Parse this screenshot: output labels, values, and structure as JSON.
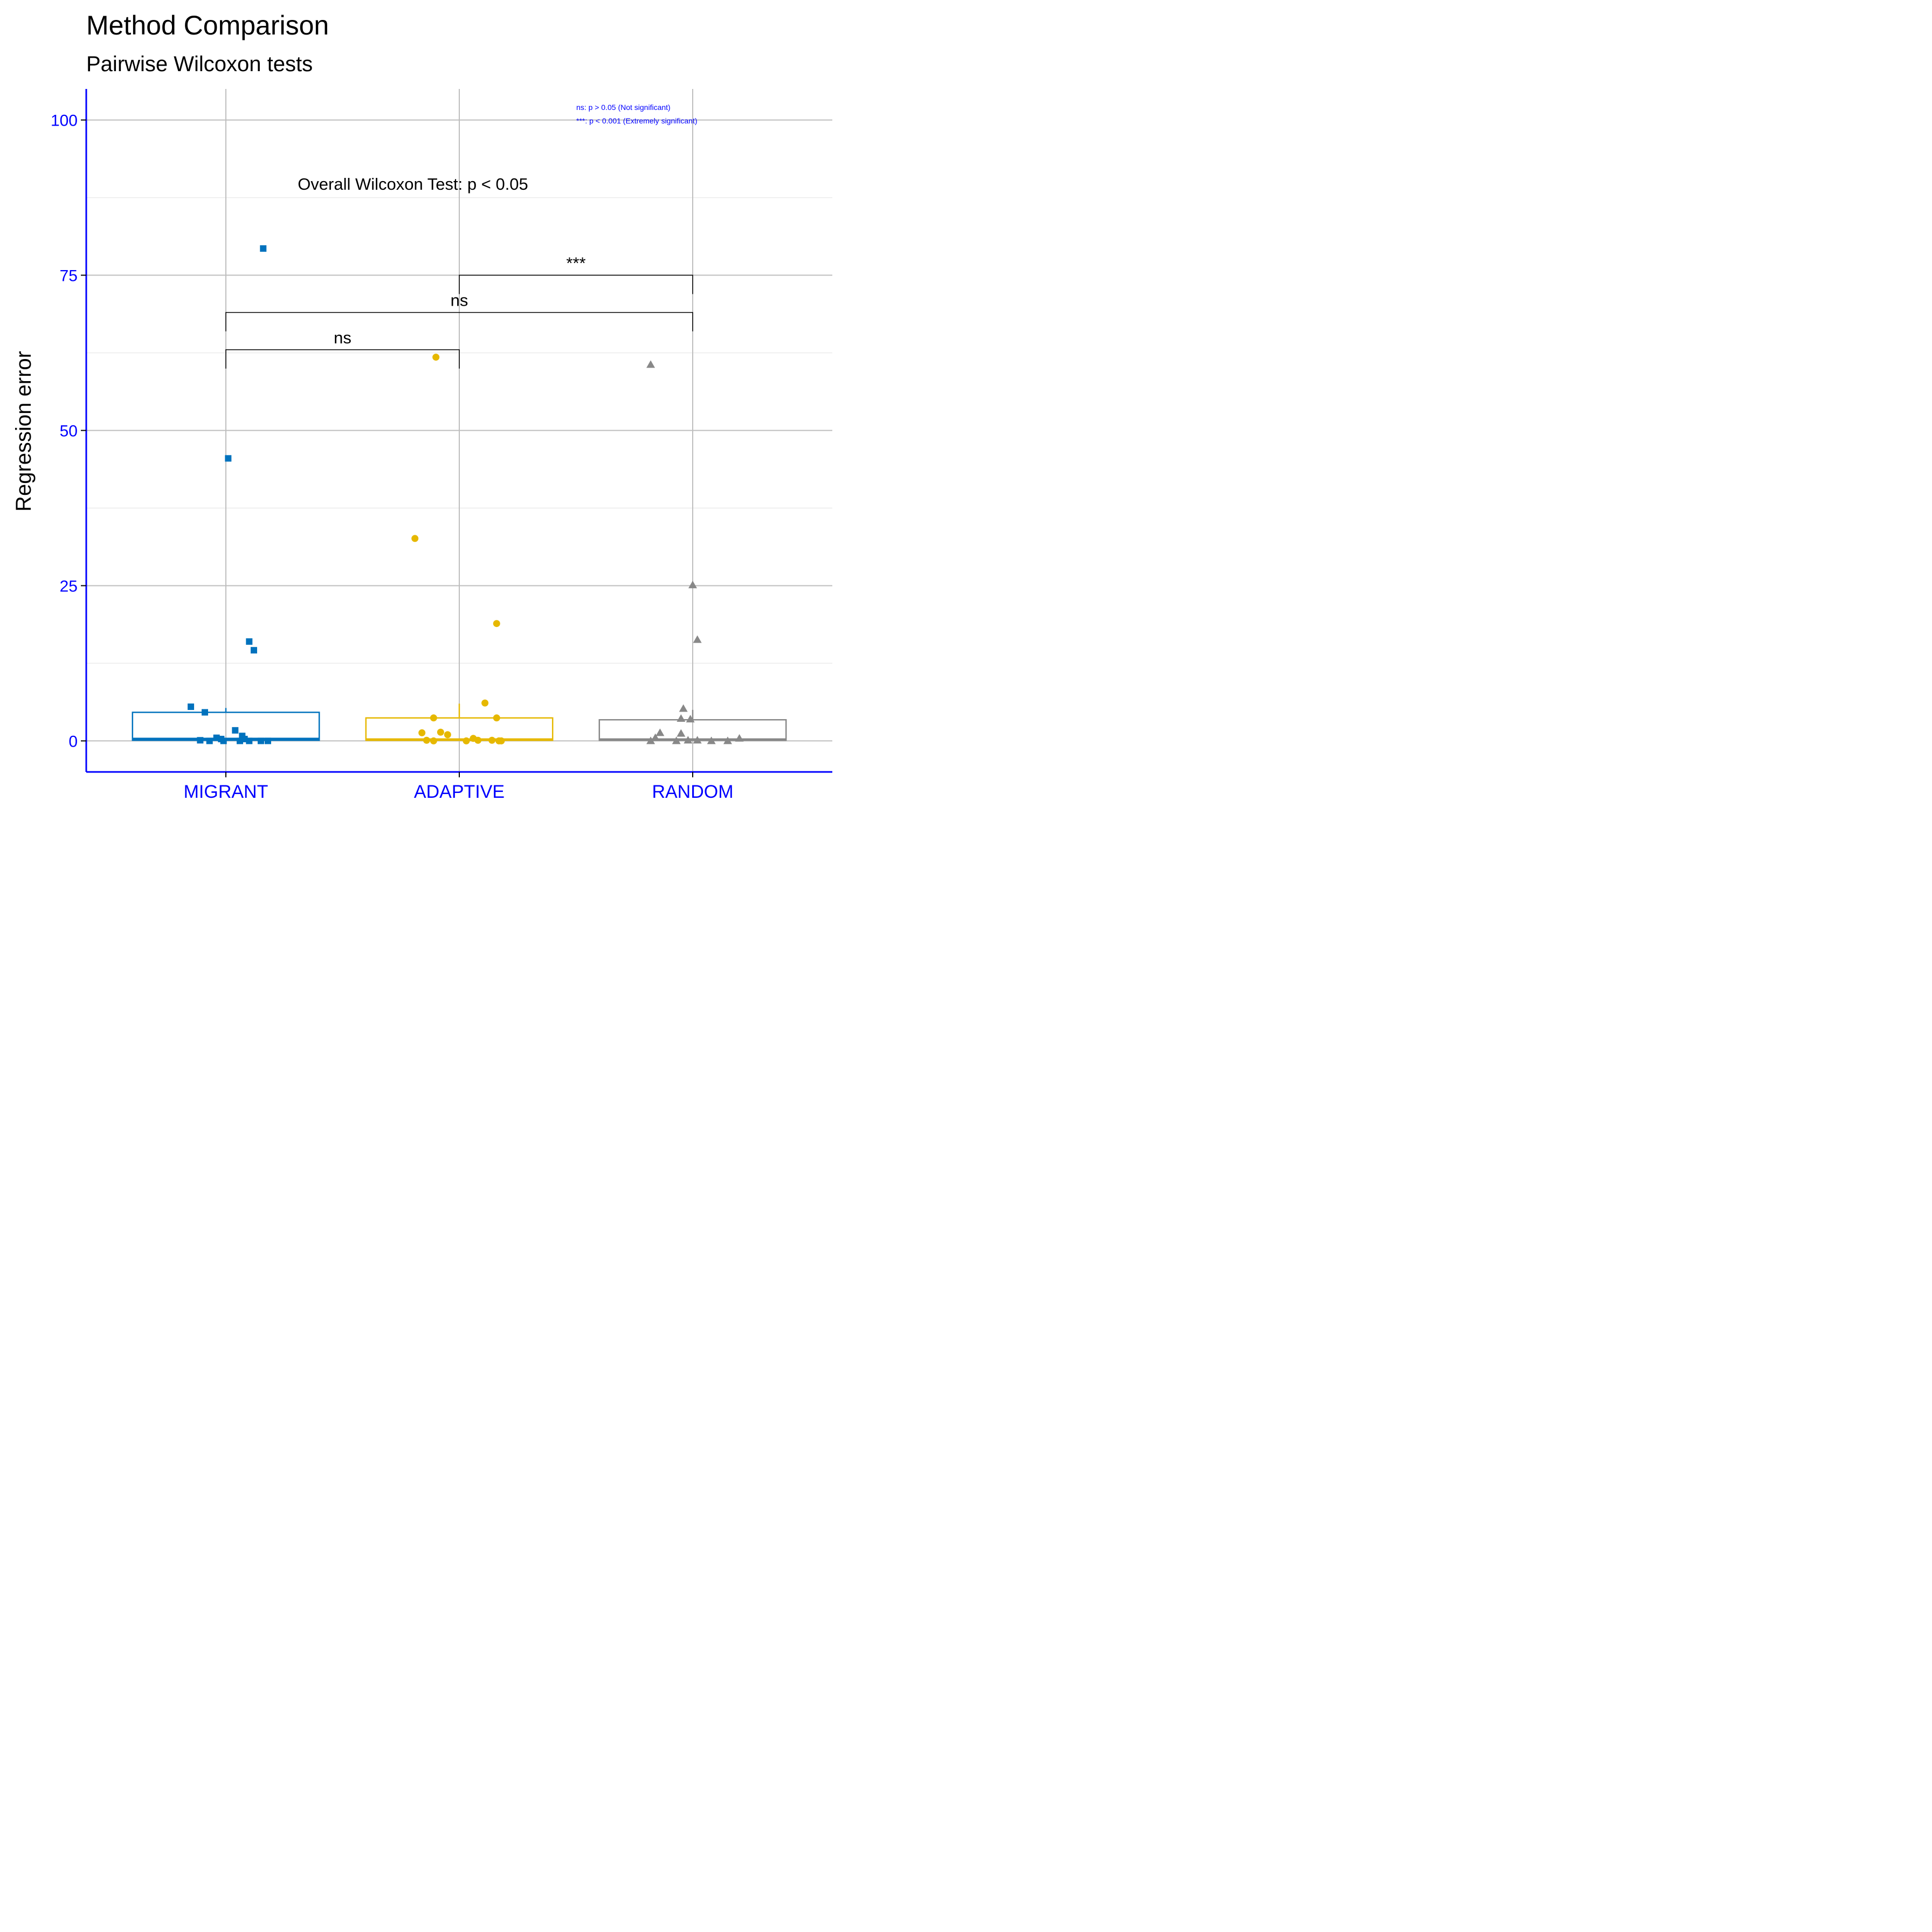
{
  "chart_data": {
    "type": "scatter",
    "title": "Method Comparison",
    "subtitle": "Pairwise Wilcoxon tests",
    "xlabel": "",
    "ylabel": "Regression error",
    "ylim": [
      -5,
      105
    ],
    "yticks": [
      0,
      25,
      50,
      75,
      100
    ],
    "categories": [
      "MIGRANT",
      "ADAPTIVE",
      "RANDOM"
    ],
    "grid": true,
    "annotation": "Overall Wilcoxon Test: p < 0.05",
    "legend_notes": [
      "ns: p > 0.05 (Not significant)",
      "***: p < 0.001 (Extremely significant)"
    ],
    "comparisons": [
      {
        "from": "MIGRANT",
        "to": "ADAPTIVE",
        "y": 63,
        "label": "ns"
      },
      {
        "from": "MIGRANT",
        "to": "RANDOM",
        "y": 69,
        "label": "ns"
      },
      {
        "from": "ADAPTIVE",
        "to": "RANDOM",
        "y": 75,
        "label": "***"
      }
    ],
    "series": [
      {
        "category": "MIGRANT",
        "color": "#0072bd",
        "shape": "square",
        "box": {
          "min": 0,
          "q1": 0.1,
          "median": 0.3,
          "q3": 4.6,
          "max": 5.3
        },
        "points": [
          {
            "dx": 0.16,
            "y": 79.3
          },
          {
            "dx": 0.01,
            "y": 45.5
          },
          {
            "dx": 0.1,
            "y": 16.0
          },
          {
            "dx": 0.12,
            "y": 14.6
          },
          {
            "dx": -0.15,
            "y": 5.5
          },
          {
            "dx": -0.09,
            "y": 4.6
          },
          {
            "dx": 0.04,
            "y": 1.7
          },
          {
            "dx": 0.07,
            "y": 0.8
          },
          {
            "dx": -0.04,
            "y": 0.5
          },
          {
            "dx": -0.02,
            "y": 0.3
          },
          {
            "dx": 0.08,
            "y": 0.3
          },
          {
            "dx": -0.11,
            "y": 0.1
          },
          {
            "dx": -0.07,
            "y": 0.0
          },
          {
            "dx": -0.01,
            "y": 0.0
          },
          {
            "dx": 0.06,
            "y": 0.0
          },
          {
            "dx": 0.1,
            "y": 0.0
          },
          {
            "dx": 0.15,
            "y": 0.0
          },
          {
            "dx": 0.18,
            "y": 0.0
          }
        ]
      },
      {
        "category": "ADAPTIVE",
        "color": "#e6b800",
        "shape": "circle",
        "box": {
          "min": 0,
          "q1": 0.1,
          "median": 0.2,
          "q3": 3.7,
          "max": 6.0
        },
        "points": [
          {
            "dx": -0.1,
            "y": 61.8
          },
          {
            "dx": -0.19,
            "y": 32.6
          },
          {
            "dx": 0.16,
            "y": 18.9
          },
          {
            "dx": 0.11,
            "y": 6.1
          },
          {
            "dx": -0.11,
            "y": 3.7
          },
          {
            "dx": 0.16,
            "y": 3.7
          },
          {
            "dx": -0.16,
            "y": 1.3
          },
          {
            "dx": -0.08,
            "y": 1.4
          },
          {
            "dx": -0.05,
            "y": 1.0
          },
          {
            "dx": 0.06,
            "y": 0.4
          },
          {
            "dx": -0.14,
            "y": 0.1
          },
          {
            "dx": -0.11,
            "y": 0.0
          },
          {
            "dx": 0.03,
            "y": 0.0
          },
          {
            "dx": 0.08,
            "y": 0.1
          },
          {
            "dx": 0.14,
            "y": 0.1
          },
          {
            "dx": 0.17,
            "y": 0.0
          },
          {
            "dx": 0.18,
            "y": 0.0
          }
        ]
      },
      {
        "category": "RANDOM",
        "color": "#888888",
        "shape": "triangle",
        "box": {
          "min": 0,
          "q1": 0.1,
          "median": 0.2,
          "q3": 3.4,
          "max": 5.0
        },
        "points": [
          {
            "dx": -0.18,
            "y": 60.6
          },
          {
            "dx": 0.0,
            "y": 25.1
          },
          {
            "dx": 0.02,
            "y": 16.3
          },
          {
            "dx": -0.04,
            "y": 5.2
          },
          {
            "dx": -0.05,
            "y": 3.6
          },
          {
            "dx": -0.01,
            "y": 3.5
          },
          {
            "dx": -0.14,
            "y": 1.3
          },
          {
            "dx": -0.05,
            "y": 1.2
          },
          {
            "dx": -0.16,
            "y": 0.5
          },
          {
            "dx": 0.2,
            "y": 0.4
          },
          {
            "dx": -0.18,
            "y": 0.0
          },
          {
            "dx": -0.07,
            "y": 0.0
          },
          {
            "dx": -0.02,
            "y": 0.1
          },
          {
            "dx": 0.02,
            "y": 0.1
          },
          {
            "dx": 0.08,
            "y": 0.0
          },
          {
            "dx": 0.15,
            "y": 0.0
          }
        ]
      }
    ]
  }
}
